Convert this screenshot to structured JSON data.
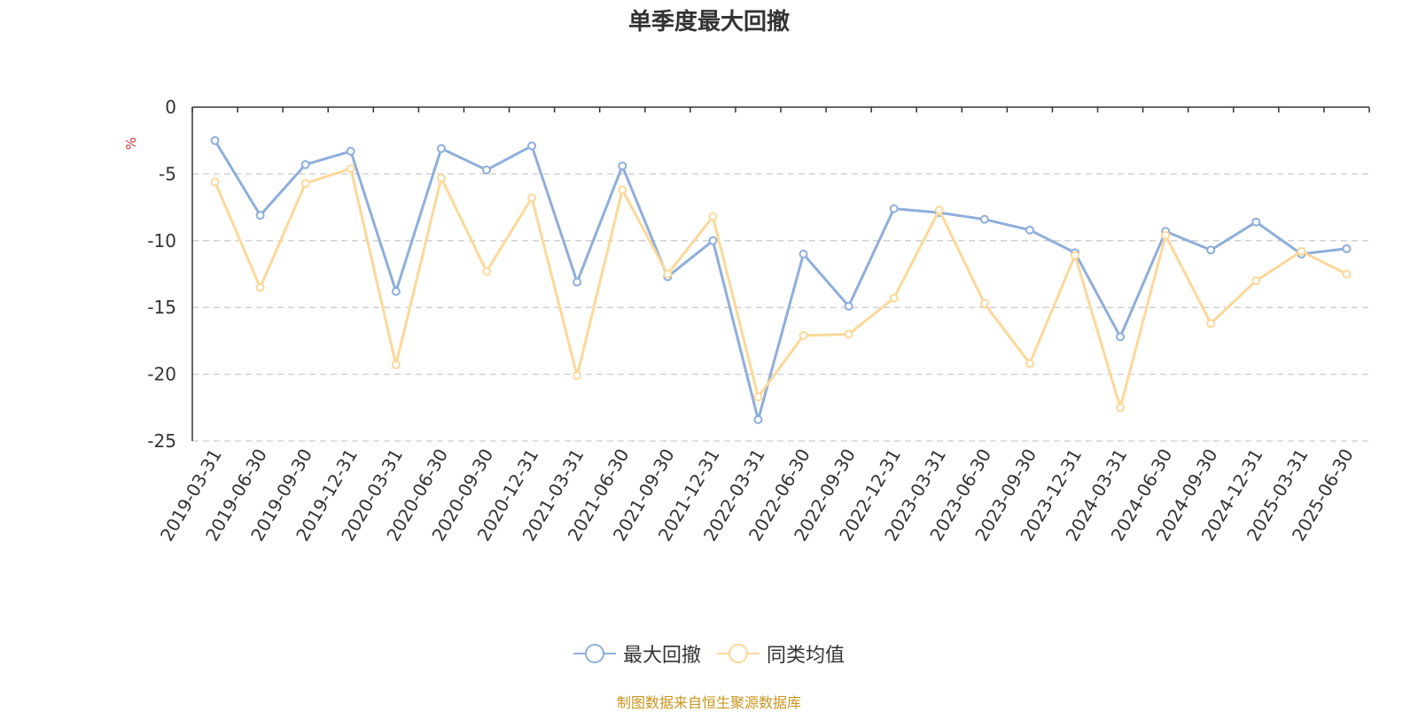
{
  "source_note": "制图数据来自恒生聚源数据库",
  "chart_data": {
    "type": "line",
    "title": "单季度最大回撤",
    "ylabel": "%",
    "ylim": [
      -25,
      0
    ],
    "yticks": [
      0,
      -5,
      -10,
      -15,
      -20,
      -25
    ],
    "grid": true,
    "legend_position": "bottom",
    "categories": [
      "2019-03-31",
      "2019-06-30",
      "2019-09-30",
      "2019-12-31",
      "2020-03-31",
      "2020-06-30",
      "2020-09-30",
      "2020-12-31",
      "2021-03-31",
      "2021-06-30",
      "2021-09-30",
      "2021-12-31",
      "2022-03-31",
      "2022-06-30",
      "2022-09-30",
      "2022-12-31",
      "2023-03-31",
      "2023-06-30",
      "2023-09-30",
      "2023-12-31",
      "2024-03-31",
      "2024-06-30",
      "2024-09-30",
      "2024-12-31",
      "2025-03-31",
      "2025-06-30"
    ],
    "series": [
      {
        "name": "最大回撤",
        "color": "#8eaedb",
        "values": [
          -2.5,
          -8.1,
          -4.3,
          -3.3,
          -13.8,
          -3.1,
          -4.7,
          -2.9,
          -13.1,
          -4.4,
          -12.7,
          -10.0,
          -23.4,
          -11.0,
          -14.9,
          -7.6,
          -7.9,
          -8.4,
          -9.2,
          -10.9,
          -17.2,
          -9.3,
          -10.7,
          -8.6,
          -11.0,
          -10.6
        ]
      },
      {
        "name": "同类均值",
        "color": "#fcd899",
        "values": [
          -5.6,
          -13.5,
          -5.7,
          -4.6,
          -19.3,
          -5.3,
          -12.3,
          -6.8,
          -20.1,
          -6.2,
          -12.5,
          -8.2,
          -21.7,
          -17.1,
          -17.0,
          -14.3,
          -7.7,
          -14.7,
          -19.2,
          -11.1,
          -22.5,
          -9.6,
          -16.2,
          -13.0,
          -10.8,
          -12.5
        ]
      }
    ]
  }
}
